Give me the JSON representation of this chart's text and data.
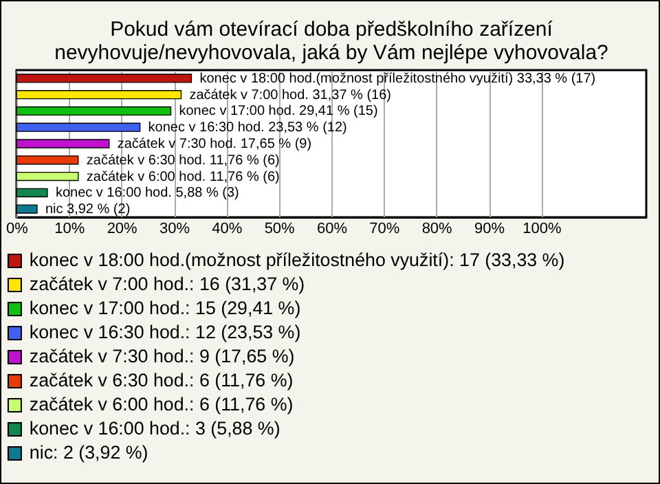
{
  "chart_data": {
    "type": "bar",
    "orientation": "horizontal",
    "title": "Pokud vám otevírací doba předškolního zařízení\nnevyhovuje/nevyhovovala, jaká by Vám nejlépe vyhovovala?",
    "categories": [
      null,
      null,
      null,
      null,
      null,
      null,
      null,
      null,
      null
    ],
    "series": [
      {
        "name": "konec v 18:00 hod.(možnost příležitostného využití): 17 (33,33 %)",
        "color": "#c0140f",
        "values": [
          33.33,
          null,
          null,
          null,
          null,
          null,
          null,
          null,
          null
        ],
        "value_labels": [
          "konec v 18:00 hod.(možnost příležitostného využití) 33,33 % (17)",
          null,
          null,
          null,
          null,
          null,
          null,
          null,
          null
        ]
      },
      {
        "name": "začátek v 7:00 hod.: 16 (31,37 %)",
        "color": "#ffe600",
        "values": [
          null,
          31.37,
          null,
          null,
          null,
          null,
          null,
          null,
          null
        ],
        "value_labels": [
          null,
          "začátek v 7:00 hod. 31,37 % (16)",
          null,
          null,
          null,
          null,
          null,
          null,
          null
        ]
      },
      {
        "name": "konec v 17:00 hod.: 15 (29,41 %)",
        "color": "#10c010",
        "values": [
          null,
          null,
          29.41,
          null,
          null,
          null,
          null,
          null,
          null
        ],
        "value_labels": [
          null,
          null,
          "konec v 17:00 hod. 29,41 % (15)",
          null,
          null,
          null,
          null,
          null,
          null
        ]
      },
      {
        "name": "konec v 16:30 hod.: 12 (23,53 %)",
        "color": "#4060f0",
        "values": [
          null,
          null,
          null,
          23.53,
          null,
          null,
          null,
          null,
          null
        ],
        "value_labels": [
          null,
          null,
          null,
          "konec v 16:30 hod. 23,53 % (12)",
          null,
          null,
          null,
          null,
          null
        ]
      },
      {
        "name": "začátek v 7:30 hod.: 9 (17,65 %)",
        "color": "#c010d0",
        "values": [
          null,
          null,
          null,
          null,
          17.65,
          null,
          null,
          null,
          null
        ],
        "value_labels": [
          null,
          null,
          null,
          null,
          "začátek v 7:30 hod. 17,65 % (9)",
          null,
          null,
          null,
          null
        ]
      },
      {
        "name": "začátek v 6:30 hod.: 6 (11,76 %)",
        "color": "#e83a08",
        "values": [
          null,
          null,
          null,
          null,
          null,
          11.76,
          null,
          null,
          null
        ],
        "value_labels": [
          null,
          null,
          null,
          null,
          null,
          "začátek v 6:30 hod. 11,76 % (6)",
          null,
          null,
          null
        ]
      },
      {
        "name": "začátek v 6:00 hod.: 6 (11,76 %)",
        "color": "#c8ff70",
        "values": [
          null,
          null,
          null,
          null,
          null,
          null,
          11.76,
          null,
          null
        ],
        "value_labels": [
          null,
          null,
          null,
          null,
          null,
          null,
          "začátek v 6:00 hod. 11,76 % (6)",
          null,
          null
        ]
      },
      {
        "name": "konec v 16:00 hod.: 3 (5,88 %)",
        "color": "#108850",
        "values": [
          null,
          null,
          null,
          null,
          null,
          null,
          null,
          5.88,
          null
        ],
        "value_labels": [
          null,
          null,
          null,
          null,
          null,
          null,
          null,
          "konec v 16:00 hod. 5,88 % (3)",
          null
        ]
      },
      {
        "name": "nic: 2 (3,92 %)",
        "color": "#107890",
        "values": [
          null,
          null,
          null,
          null,
          null,
          null,
          null,
          null,
          3.92
        ],
        "value_labels": [
          null,
          null,
          null,
          null,
          null,
          null,
          null,
          null,
          "nic 3,92 % (2)"
        ]
      }
    ],
    "xlim": [
      0,
      120
    ],
    "xticks": [
      {
        "value": 0,
        "label": "0%"
      },
      {
        "value": 10,
        "label": "10%"
      },
      {
        "value": 20,
        "label": "20%"
      },
      {
        "value": 30,
        "label": "30%"
      },
      {
        "value": 40,
        "label": "40%"
      },
      {
        "value": 50,
        "label": "50%"
      },
      {
        "value": 60,
        "label": "60%"
      },
      {
        "value": 70,
        "label": "70%"
      },
      {
        "value": 80,
        "label": "80%"
      },
      {
        "value": 90,
        "label": "90%"
      },
      {
        "value": 100,
        "label": "100%"
      }
    ],
    "grid": "x",
    "legend": "bottom",
    "tick_labels": "x"
  }
}
